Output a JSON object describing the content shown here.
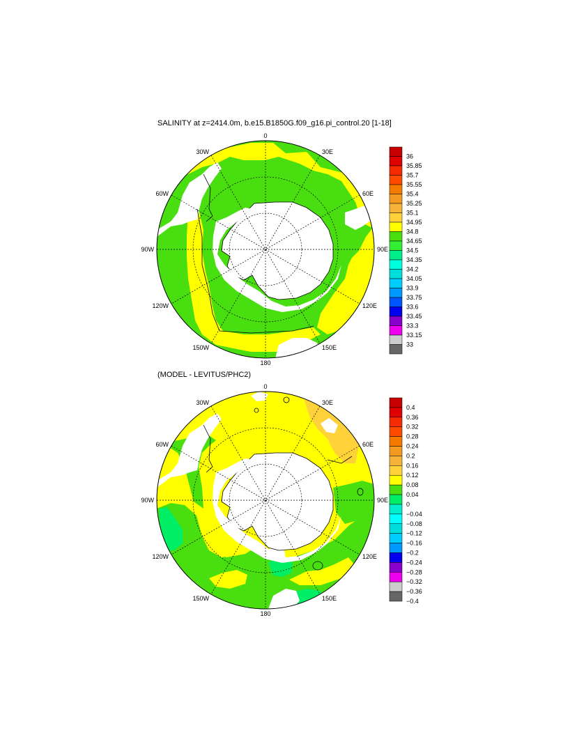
{
  "charts": [
    {
      "title": "SALINITY at z=2414.0m, b.e15.B1850G.f09_g16.pi_control.20 [1-18]",
      "lon_labels": {
        "n": "0",
        "ne": "30E",
        "ene": "60E",
        "e": "90E",
        "ese": "120E",
        "se": "150E",
        "s": "180",
        "sw": "150W",
        "wsw": "120W",
        "w": "90W",
        "wnw": "60W",
        "nw": "30W"
      },
      "colorbar_labels": [
        "36",
        "35.85",
        "35.7",
        "35.55",
        "35.4",
        "35.25",
        "35.1",
        "34.95",
        "34.8",
        "34.65",
        "34.5",
        "34.35",
        "34.2",
        "34.05",
        "33.9",
        "33.75",
        "33.6",
        "33.45",
        "33.3",
        "33.15",
        "33"
      ],
      "colorbar_colors": [
        "#c80000",
        "#e00000",
        "#f52a00",
        "#ff4a00",
        "#f77a00",
        "#f59a20",
        "#f6b33a",
        "#ffd23a",
        "#ffff00",
        "#49de10",
        "#33ee33",
        "#00ee88",
        "#00ffdd",
        "#00dddd",
        "#00ccff",
        "#0099ff",
        "#0055ff",
        "#0000ee",
        "#8800cc",
        "#ee00ee",
        "#cccccc",
        "#666666"
      ]
    },
    {
      "title": "(MODEL - LEVITUS/PHC2)",
      "lon_labels": {
        "n": "0",
        "ne": "30E",
        "ene": "60E",
        "e": "90E",
        "ese": "120E",
        "se": "150E",
        "s": "180",
        "sw": "150W",
        "wsw": "120W",
        "w": "90W",
        "wnw": "60W",
        "nw": "30W"
      },
      "colorbar_labels": [
        "0.4",
        "0.36",
        "0.32",
        "0.28",
        "0.24",
        "0.2",
        "0.16",
        "0.12",
        "0.08",
        "0.04",
        "0",
        "−0.04",
        "−0.08",
        "−0.12",
        "−0.16",
        "−0.2",
        "−0.24",
        "−0.28",
        "−0.32",
        "−0.36",
        "−0.4"
      ],
      "colorbar_colors": [
        "#c80000",
        "#e00000",
        "#f52a00",
        "#ff4a00",
        "#f77a00",
        "#f59a20",
        "#f6b33a",
        "#ffd23a",
        "#ffff00",
        "#49de10",
        "#00ee66",
        "#00eecc",
        "#00ffff",
        "#00dddd",
        "#00ccff",
        "#0099ff",
        "#0000ee",
        "#8800cc",
        "#ee00ee",
        "#cccccc",
        "#666666"
      ]
    }
  ],
  "chart_data": [
    {
      "type": "heatmap",
      "projection": "south-polar-stereographic",
      "title": "SALINITY at z=2414.0m, b.e15.B1850G.f09_g16.pi_control.20 [1-18]",
      "variable": "salinity",
      "depth_m": 2414.0,
      "colorbar_levels": [
        33,
        33.15,
        33.3,
        33.45,
        33.6,
        33.75,
        33.9,
        34.05,
        34.2,
        34.35,
        34.5,
        34.65,
        34.8,
        34.95,
        35.1,
        35.25,
        35.4,
        35.55,
        35.7,
        35.85,
        36
      ],
      "dominant_ranges": [
        {
          "range": [
            34.65,
            34.8
          ],
          "region": "most of Southern Ocean around Antarctica"
        },
        {
          "range": [
            34.8,
            34.95
          ],
          "region": "outer ring, South Pacific and South Atlantic/Indian margins"
        }
      ],
      "missing_value_color": "white"
    },
    {
      "type": "heatmap",
      "projection": "south-polar-stereographic",
      "title": "(MODEL - LEVITUS/PHC2)",
      "variable": "salinity difference",
      "colorbar_levels": [
        -0.4,
        -0.36,
        -0.32,
        -0.28,
        -0.24,
        -0.2,
        -0.16,
        -0.12,
        -0.08,
        -0.04,
        0,
        0.04,
        0.08,
        0.12,
        0.16,
        0.2,
        0.24,
        0.28,
        0.32,
        0.36,
        0.4
      ],
      "dominant_ranges": [
        {
          "range": [
            0.08,
            0.12
          ],
          "region": "Weddell sector, Indian Ocean sector and East Pacific"
        },
        {
          "range": [
            0.04,
            0.08
          ],
          "region": "Pacific sector and Ross Sea region"
        },
        {
          "range": [
            0.12,
            0.16
          ],
          "region": "South Atlantic near 30E-60E"
        },
        {
          "range": [
            0,
            0.04
          ],
          "region": "small patches near 180 and 90W"
        }
      ],
      "missing_value_color": "white"
    }
  ]
}
